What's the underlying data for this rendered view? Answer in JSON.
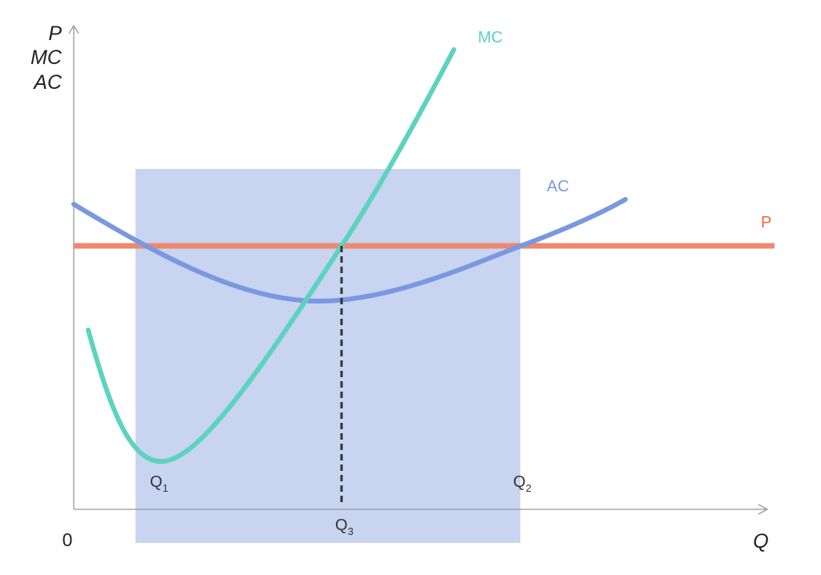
{
  "axes": {
    "y_labels": [
      "P",
      "MC",
      "AC"
    ],
    "x_label": "Q",
    "origin_label": "0"
  },
  "curves": {
    "mc": {
      "label": "MC",
      "color": "#5dd3bf"
    },
    "ac": {
      "label": "AC",
      "color": "#7a98e0"
    },
    "p": {
      "label": "P",
      "color": "#ec8a6f",
      "label_color": "#e8673e"
    }
  },
  "quantities": {
    "q1": {
      "base": "Q",
      "sub": "1"
    },
    "q2": {
      "base": "Q",
      "sub": "2"
    },
    "q3": {
      "base": "Q",
      "sub": "3"
    }
  },
  "shaded_region": {
    "color": "#c8d4f0"
  }
}
